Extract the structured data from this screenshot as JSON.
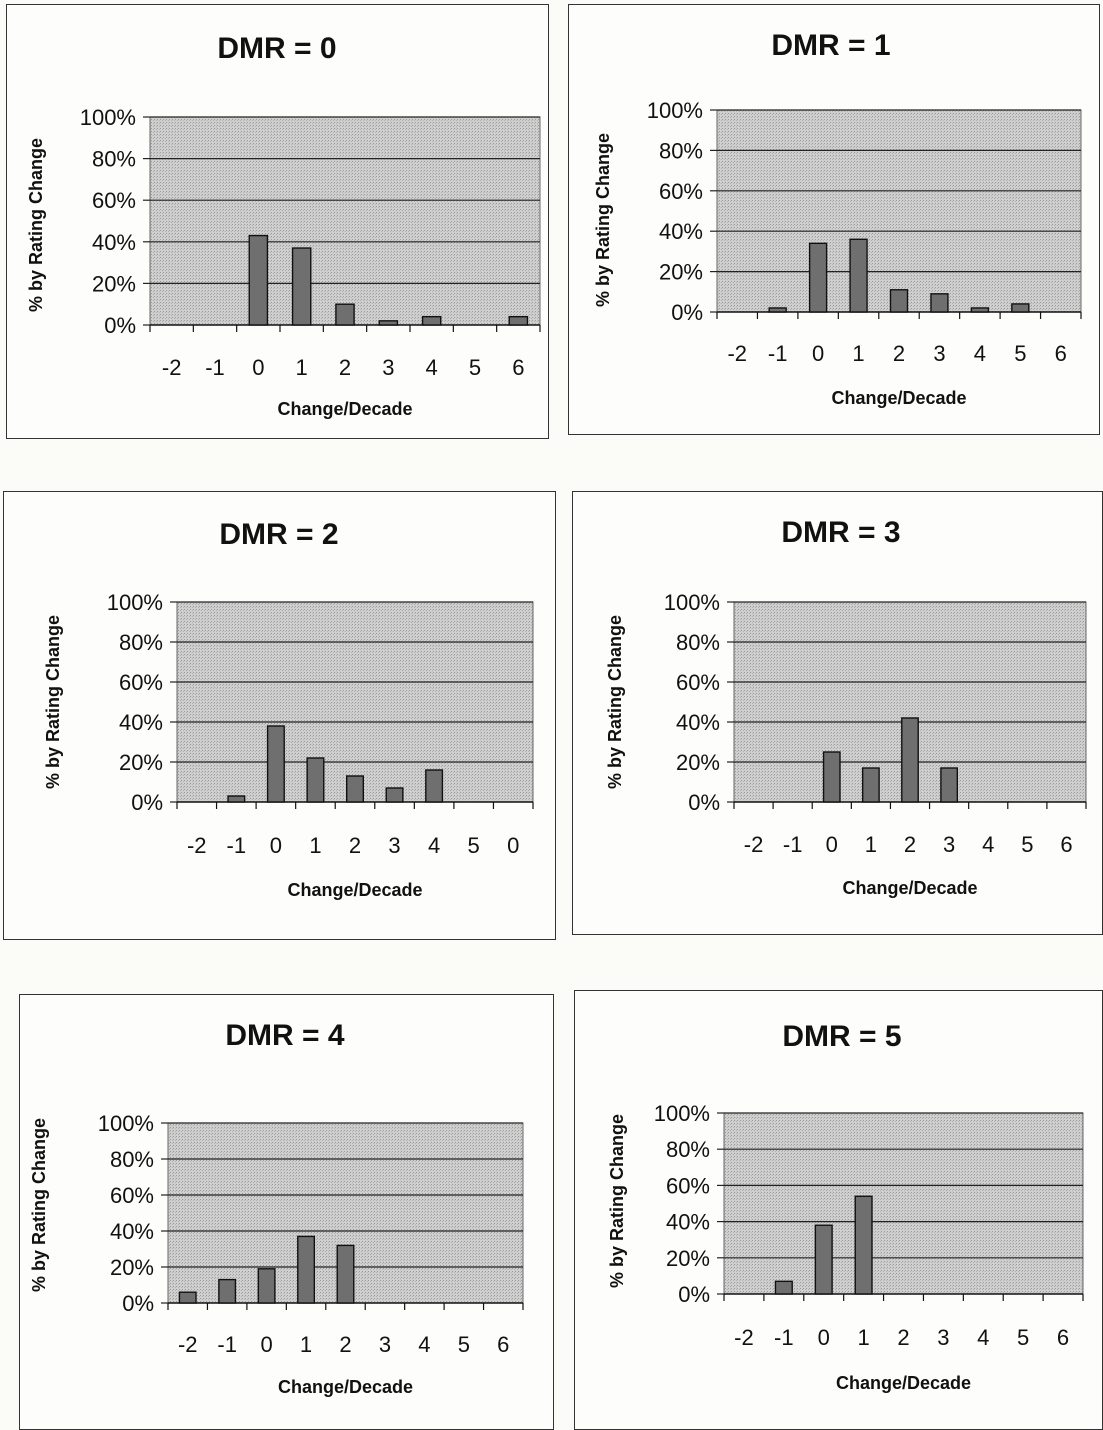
{
  "chart_data": [
    {
      "type": "bar",
      "title": "DMR = 0",
      "xlabel": "Change/Decade",
      "ylabel": "% by Rating Change",
      "categories": [
        "-2",
        "-1",
        "0",
        "1",
        "2",
        "3",
        "4",
        "5",
        "6"
      ],
      "values": [
        0,
        0,
        43,
        37,
        10,
        2,
        4,
        0,
        4
      ],
      "ylim": [
        0,
        100
      ],
      "yticks": [
        "0%",
        "20%",
        "40%",
        "60%",
        "80%",
        "100%"
      ],
      "grid": true
    },
    {
      "type": "bar",
      "title": "DMR = 1",
      "xlabel": "Change/Decade",
      "ylabel": "% by Rating Change",
      "categories": [
        "-2",
        "-1",
        "0",
        "1",
        "2",
        "3",
        "4",
        "5",
        "6"
      ],
      "values": [
        0,
        2,
        34,
        36,
        11,
        9,
        2,
        4,
        0
      ],
      "ylim": [
        0,
        100
      ],
      "yticks": [
        "0%",
        "20%",
        "40%",
        "60%",
        "80%",
        "100%"
      ],
      "grid": true
    },
    {
      "type": "bar",
      "title": "DMR = 2",
      "xlabel": "Change/Decade",
      "ylabel": "% by Rating Change",
      "categories": [
        "-2",
        "-1",
        "0",
        "1",
        "2",
        "3",
        "4",
        "5",
        "0"
      ],
      "values": [
        0,
        3,
        38,
        22,
        13,
        7,
        16,
        0,
        0
      ],
      "ylim": [
        0,
        100
      ],
      "yticks": [
        "0%",
        "20%",
        "40%",
        "60%",
        "80%",
        "100%"
      ],
      "grid": true
    },
    {
      "type": "bar",
      "title": "DMR = 3",
      "xlabel": "Change/Decade",
      "ylabel": "% by Rating Change",
      "categories": [
        "-2",
        "-1",
        "0",
        "1",
        "2",
        "3",
        "4",
        "5",
        "6"
      ],
      "values": [
        0,
        0,
        25,
        17,
        42,
        17,
        0,
        0,
        0
      ],
      "ylim": [
        0,
        100
      ],
      "yticks": [
        "0%",
        "20%",
        "40%",
        "60%",
        "80%",
        "100%"
      ],
      "grid": true
    },
    {
      "type": "bar",
      "title": "DMR = 4",
      "xlabel": "Change/Decade",
      "ylabel": "% by Rating Change",
      "categories": [
        "-2",
        "-1",
        "0",
        "1",
        "2",
        "3",
        "4",
        "5",
        "6"
      ],
      "values": [
        6,
        13,
        19,
        37,
        32,
        0,
        0,
        0,
        0
      ],
      "ylim": [
        0,
        100
      ],
      "yticks": [
        "0%",
        "20%",
        "40%",
        "60%",
        "80%",
        "100%"
      ],
      "grid": true
    },
    {
      "type": "bar",
      "title": "DMR = 5",
      "xlabel": "Change/Decade",
      "ylabel": "% by Rating Change",
      "categories": [
        "-2",
        "-1",
        "0",
        "1",
        "2",
        "3",
        "4",
        "5",
        "6"
      ],
      "values": [
        0,
        7,
        38,
        54,
        0,
        0,
        0,
        0,
        0
      ],
      "ylim": [
        0,
        100
      ],
      "yticks": [
        "0%",
        "20%",
        "40%",
        "60%",
        "80%",
        "100%"
      ],
      "grid": true
    }
  ]
}
